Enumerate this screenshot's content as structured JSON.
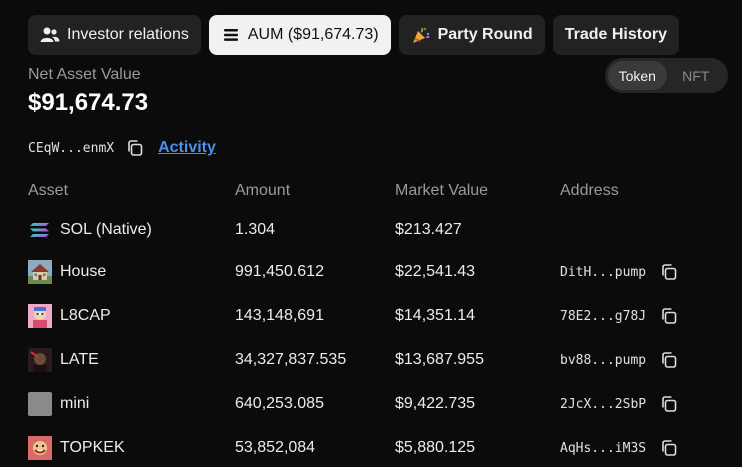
{
  "tabs": [
    {
      "label": "Investor relations",
      "icon": "users-icon",
      "active": false
    },
    {
      "label": "AUM ($91,674.73)",
      "icon": "stack-icon",
      "active": true
    },
    {
      "label": "Party Round",
      "icon": "party-popper-icon",
      "active": false
    },
    {
      "label": "Trade History",
      "icon": "",
      "active": false
    }
  ],
  "nav": {
    "label": "Net Asset Value",
    "value": "$91,674.73"
  },
  "toggle": {
    "options": [
      "Token",
      "NFT"
    ],
    "selected": "Token"
  },
  "wallet": {
    "address": "CEqW...enmX",
    "activity_label": "Activity"
  },
  "table": {
    "headers": [
      "Asset",
      "Amount",
      "Market Value",
      "Address"
    ],
    "rows": [
      {
        "asset": "SOL (Native)",
        "amount": "1.304",
        "value": "$213.427",
        "address": "",
        "icon": "solana-icon"
      },
      {
        "asset": "House",
        "amount": "991,450.612",
        "value": "$22,541.43",
        "address": "DitH...pump",
        "icon": "house-icon"
      },
      {
        "asset": "L8CAP",
        "amount": "143,148,691",
        "value": "$14,351.14",
        "address": "78E2...g78J",
        "icon": "l8cap-avatar-icon"
      },
      {
        "asset": "LATE",
        "amount": "34,327,837.535",
        "value": "$13,687.955",
        "address": "bv88...pump",
        "icon": "late-avatar-icon"
      },
      {
        "asset": "mini",
        "amount": "640,253.085",
        "value": "$9,422.735",
        "address": "2JcX...2SbP",
        "icon": "mini-avatar-icon"
      },
      {
        "asset": "TOPKEK",
        "amount": "53,852,084",
        "value": "$5,880.125",
        "address": "AqHs...iM3S",
        "icon": "topkek-avatar-icon"
      }
    ]
  }
}
